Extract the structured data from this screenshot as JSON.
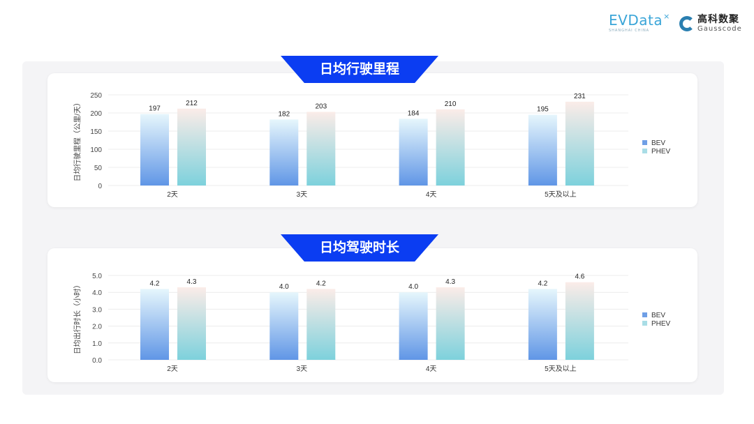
{
  "logos": {
    "evdata": "EVData",
    "evdata_sub": "SHANGHAI CHINA",
    "gauss_cn": "高科数聚",
    "gauss_en": "Gausscode"
  },
  "colors": {
    "banner": "#0b3df2",
    "bev_top": "#e6f6fc",
    "bev_bottom": "#6096e6",
    "phev_top": "#fbece8",
    "phev_bottom": "#7dd1dc"
  },
  "chart_data": [
    {
      "type": "bar",
      "title": "日均行驶里程",
      "ylabel": "日均行驶里程（公里/天）",
      "categories": [
        "2天",
        "3天",
        "4天",
        "5天及以上"
      ],
      "series": [
        {
          "name": "BEV",
          "values": [
            197,
            182,
            184,
            195
          ]
        },
        {
          "name": "PHEV",
          "values": [
            212,
            203,
            210,
            231
          ]
        }
      ],
      "yticks": [
        "0",
        "50",
        "100",
        "150",
        "200",
        "250"
      ],
      "ylim": [
        0,
        250
      ],
      "legend": "right",
      "grid": true
    },
    {
      "type": "bar",
      "title": "日均驾驶时长",
      "ylabel": "日均出行时长（小时）",
      "categories": [
        "2天",
        "3天",
        "4天",
        "5天及以上"
      ],
      "series": [
        {
          "name": "BEV",
          "values": [
            4.2,
            4.0,
            4.0,
            4.2
          ]
        },
        {
          "name": "PHEV",
          "values": [
            4.3,
            4.2,
            4.3,
            4.6
          ]
        }
      ],
      "yticks": [
        "0.0",
        "1.0",
        "2.0",
        "3.0",
        "4.0",
        "5.0"
      ],
      "ylim": [
        0,
        5
      ],
      "legend": "right",
      "grid": true,
      "decimals": 1
    }
  ]
}
